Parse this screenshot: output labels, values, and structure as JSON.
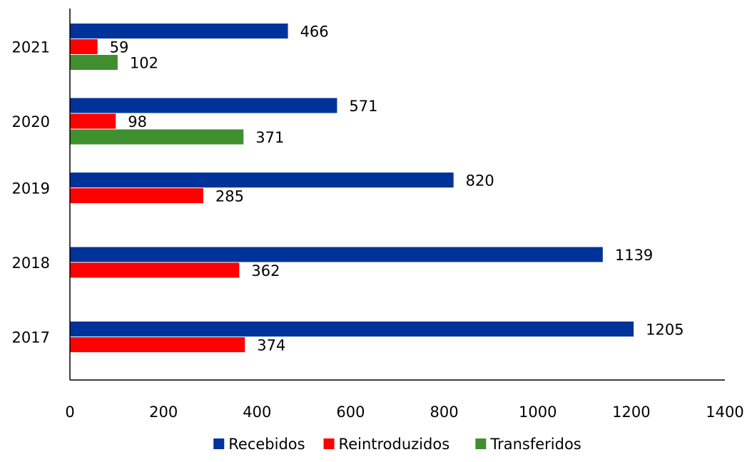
{
  "chart_data": {
    "type": "bar",
    "orientation": "horizontal",
    "title": "",
    "xlabel": "",
    "ylabel": "",
    "categories": [
      "2021",
      "2020",
      "2019",
      "2018",
      "2017"
    ],
    "series": [
      {
        "name": "Recebidos",
        "color": "#003399",
        "values": [
          466,
          571,
          820,
          1139,
          1205
        ]
      },
      {
        "name": "Reintroduzidos",
        "color": "#ff0000",
        "values": [
          59,
          98,
          285,
          362,
          374
        ]
      },
      {
        "name": "Transferidos",
        "color": "#3f8f2f",
        "values": [
          102,
          371,
          null,
          null,
          null
        ]
      }
    ],
    "xlim": [
      0,
      1400
    ],
    "x_ticks": [
      "0",
      "200",
      "400",
      "600",
      "800",
      "1000",
      "1200",
      "1400"
    ],
    "grid": false,
    "legend_position": "bottom",
    "data_labels": true
  }
}
